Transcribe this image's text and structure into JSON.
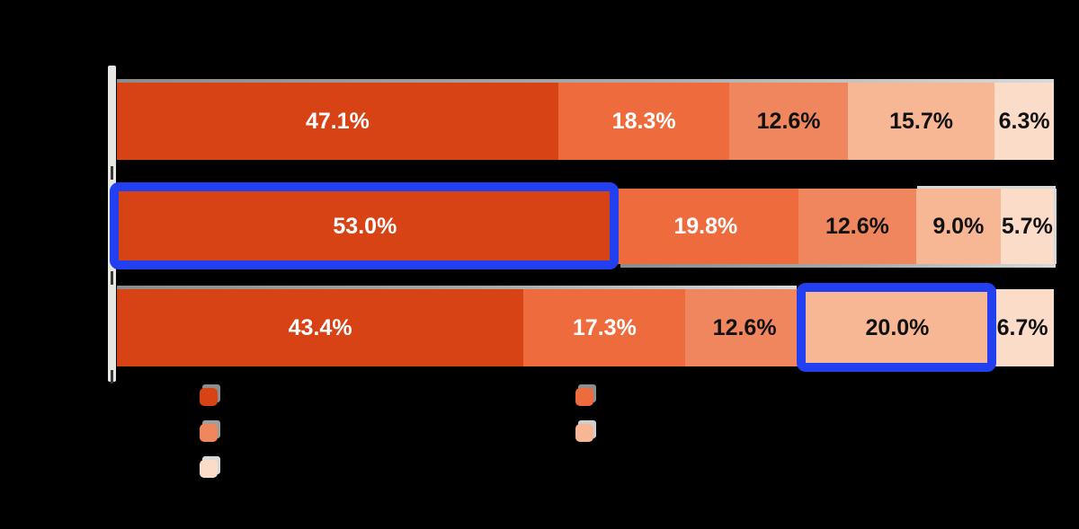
{
  "canvas": {
    "background": "#000000"
  },
  "chart_data": {
    "type": "bar",
    "orientation": "horizontal",
    "stacked": true,
    "unit": "percent",
    "title": "",
    "categories": [
      "",
      "",
      ""
    ],
    "series": [
      {
        "name": "series-1-darkest-orange",
        "color": "#d84315",
        "values": [
          47.1,
          53.0,
          43.4
        ]
      },
      {
        "name": "series-2-medium-orange",
        "color": "#ee6b3d",
        "values": [
          18.3,
          19.8,
          17.3
        ]
      },
      {
        "name": "series-3-salmon",
        "color": "#f0865e",
        "values": [
          12.6,
          12.6,
          12.6
        ]
      },
      {
        "name": "series-4-light-peach",
        "color": "#f7b795",
        "values": [
          15.7,
          9.0,
          20.0
        ]
      },
      {
        "name": "series-5-palest-peach",
        "color": "#fbdcc8",
        "values": [
          6.3,
          5.7,
          6.7
        ]
      }
    ],
    "value_labels": [
      [
        "47.1%",
        "18.3%",
        "12.6%",
        "15.7%",
        "6.3%"
      ],
      [
        "53.0%",
        "19.8%",
        "12.6%",
        "9.0%",
        "5.7%"
      ],
      [
        "43.4%",
        "17.3%",
        "12.6%",
        "20.0%",
        "6.7%"
      ]
    ],
    "label_text_colors": [
      "#ffffff",
      "#ffffff",
      "#111111",
      "#111111",
      "#111111"
    ],
    "highlights": [
      {
        "bar_index": 1,
        "segment_index": 0,
        "value_label": "53.0%",
        "color": "#223ff0"
      },
      {
        "bar_index": 2,
        "segment_index": 3,
        "value_label": "20.0%",
        "color": "#223ff0"
      }
    ],
    "axis": {
      "baseline_color": "#e8e6e3",
      "tick_color": "#383838"
    },
    "legend_position": "bottom"
  },
  "legend": {
    "columns": 2,
    "items": [
      {
        "swatch_color": "#d84315",
        "shadow_color": "#8e8e8e",
        "label": ""
      },
      {
        "swatch_color": "#ee6b3d",
        "shadow_color": "#8e8e8e",
        "label": ""
      },
      {
        "swatch_color": "#f0865e",
        "shadow_color": "#9e9e9e",
        "label": ""
      },
      {
        "swatch_color": "#f7b795",
        "shadow_color": "#cfcfcf",
        "label": ""
      },
      {
        "swatch_color": "#fbdcc8",
        "shadow_color": "#d9d9d9",
        "label": ""
      }
    ]
  }
}
